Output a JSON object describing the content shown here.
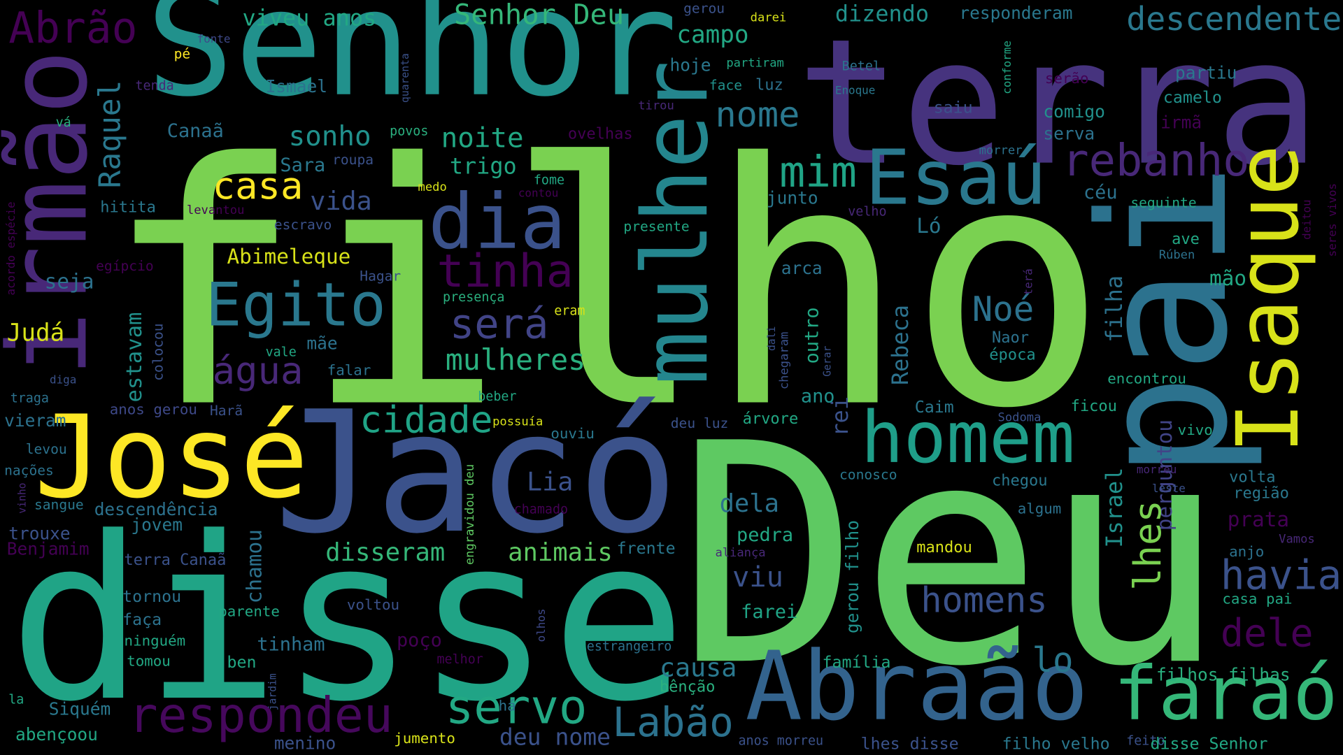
{
  "words": [
    "filho",
    "Deu",
    "disse",
    "terra",
    "Senhor",
    "Jacó",
    "José",
    "pai",
    "irmão",
    "mulher",
    "Isaque",
    "dia",
    "Egito",
    "Esaú",
    "homem",
    "Abraão",
    "faraó",
    "respondeu",
    "servo",
    "Labão",
    "cidade",
    "casa",
    "tinha",
    "será",
    "mulheres",
    "água",
    "mim",
    "nome",
    "rebanho",
    "Abrão",
    "Noé",
    "havia",
    "dele",
    "homens",
    "lo",
    "descendente",
    "Senhor Deu",
    "disseram",
    "animais",
    "Lia",
    "dela",
    "viu",
    "pedra",
    "farei",
    "causa",
    "deu nome",
    "noite",
    "sonho",
    "trigo",
    "vida",
    "campo",
    "hoje",
    "viveu anos",
    "dizendo",
    "responderam",
    "Raquel",
    "Ismael",
    "Canaã",
    "Sara",
    "roupa",
    "hitita",
    "levantou",
    "escravo",
    "Abimeleque",
    "seja",
    "egípcio",
    "Hagar",
    "Judá",
    "estavam",
    "colocou",
    "mãe",
    "vale",
    "falar",
    "diga",
    "traga",
    "Harã",
    "anos gerou",
    "vieram",
    "levou",
    "nações",
    "vinho",
    "sangue",
    "descendência",
    "trouxe",
    "jovem",
    "Benjamim",
    "terra Canaã",
    "chamou",
    "tornou",
    "faça",
    "parente",
    "ninguém",
    "tomou",
    "poço",
    "tinham",
    "ben",
    "voltou",
    "la",
    "Siquém",
    "abençoou",
    "menino",
    "jardim",
    "melhor",
    "jumento",
    "há",
    "estrangeiro",
    "bênção",
    "olhos",
    "engravidou deu",
    "possuía",
    "beber",
    "ouviu",
    "chamado",
    "frente",
    "aliança",
    "deu luz",
    "árvore",
    "rei",
    "conosco",
    "gerou filho",
    "família",
    "lhes disse",
    "anos morreu",
    "mandou",
    "algum",
    "chegou",
    "Sodoma",
    "ficou",
    "encontrou",
    "Caim",
    "Naor",
    "época",
    "Rebeca",
    "chegaram",
    "dali",
    "Gerar",
    "ano",
    "outro",
    "arca",
    "junto",
    "terá",
    "Ló",
    "céu",
    "seguinte",
    "ave",
    "Rúben",
    "filha",
    "mão",
    "perguntou",
    "Israel",
    "lhes",
    "prata",
    "região",
    "volta",
    "anjo",
    "Vamos",
    "casa pai",
    "morreu",
    "leste",
    "vivo",
    "filhos filhas",
    "filho velho",
    "feito",
    "disse Senhor",
    "seres vivos",
    "deitou",
    "acordo espécie",
    "partiu",
    "camelo",
    "irmã",
    "serão",
    "comigo",
    "serva",
    "morrer",
    "conforme",
    "Betel",
    "Enoque",
    "saiu",
    "gerou",
    "darei",
    "partiram",
    "face",
    "luz",
    "tirou",
    "ovelhas",
    "pé",
    "fonte",
    "tenda",
    "quarenta",
    "vá",
    "povos",
    "medo",
    "fome",
    "contou",
    "presente",
    "velho",
    "presença",
    "eram"
  ]
}
